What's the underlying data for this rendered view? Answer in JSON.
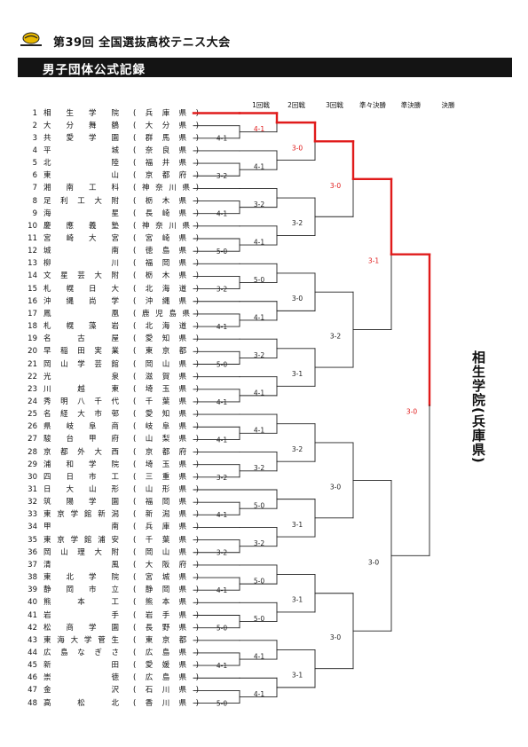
{
  "header": {
    "title": "第39回 全国選抜高校テニス大会",
    "section": "男子団体公式記録"
  },
  "brand": {
    "accent": "#e01b1b",
    "line": "#222222",
    "bar": "#141414"
  },
  "rounds": [
    "1回戦",
    "2回戦",
    "3回戦",
    "準々決勝",
    "準決勝",
    "決勝"
  ],
  "participants": [
    {
      "n": "1",
      "school": "相生学院",
      "pref": "(兵庫県)"
    },
    {
      "n": "2",
      "school": "大分舞鶴",
      "pref": "(大分県)"
    },
    {
      "n": "3",
      "school": "共愛学園",
      "pref": "(群馬県)"
    },
    {
      "n": "4",
      "school": "平城",
      "pref": "(奈良県)"
    },
    {
      "n": "5",
      "school": "北陸",
      "pref": "(福井県)"
    },
    {
      "n": "6",
      "school": "東山",
      "pref": "(京都府)"
    },
    {
      "n": "7",
      "school": "湘南工科",
      "pref": "(神奈川県)"
    },
    {
      "n": "8",
      "school": "足利工大附",
      "pref": "(栃木県)"
    },
    {
      "n": "9",
      "school": "海星",
      "pref": "(長崎県)"
    },
    {
      "n": "10",
      "school": "慶應義塾",
      "pref": "(神奈川県)"
    },
    {
      "n": "11",
      "school": "宮崎大宮",
      "pref": "(宮崎県)"
    },
    {
      "n": "12",
      "school": "城南",
      "pref": "(徳島県)"
    },
    {
      "n": "13",
      "school": "柳川",
      "pref": "(福岡県)"
    },
    {
      "n": "14",
      "school": "文星芸大附",
      "pref": "(栃木県)"
    },
    {
      "n": "15",
      "school": "札幌日大",
      "pref": "(北海道)"
    },
    {
      "n": "16",
      "school": "沖縄尚学",
      "pref": "(沖縄県)"
    },
    {
      "n": "17",
      "school": "鳳凰",
      "pref": "(鹿児島県)"
    },
    {
      "n": "18",
      "school": "札幌藻岩",
      "pref": "(北海道)"
    },
    {
      "n": "19",
      "school": "名古屋",
      "pref": "(愛知県)"
    },
    {
      "n": "20",
      "school": "早稲田実業",
      "pref": "(東京都)"
    },
    {
      "n": "21",
      "school": "岡山学芸館",
      "pref": "(岡山県)"
    },
    {
      "n": "22",
      "school": "光泉",
      "pref": "(滋賀県)"
    },
    {
      "n": "23",
      "school": "川越東",
      "pref": "(埼玉県)"
    },
    {
      "n": "24",
      "school": "秀明八千代",
      "pref": "(千葉県)"
    },
    {
      "n": "25",
      "school": "名経大市邨",
      "pref": "(愛知県)"
    },
    {
      "n": "26",
      "school": "県岐阜商",
      "pref": "(岐阜県)"
    },
    {
      "n": "27",
      "school": "駿台甲府",
      "pref": "(山梨県)"
    },
    {
      "n": "28",
      "school": "京都外大西",
      "pref": "(京都府)"
    },
    {
      "n": "29",
      "school": "浦和学院",
      "pref": "(埼玉県)"
    },
    {
      "n": "30",
      "school": "四日市工",
      "pref": "(三重県)"
    },
    {
      "n": "31",
      "school": "日大山形",
      "pref": "(山形県)"
    },
    {
      "n": "32",
      "school": "筑陽学園",
      "pref": "(福岡県)"
    },
    {
      "n": "33",
      "school": "東京学館新潟",
      "pref": "(新潟県)"
    },
    {
      "n": "34",
      "school": "甲南",
      "pref": "(兵庫県)"
    },
    {
      "n": "35",
      "school": "東京学館浦安",
      "pref": "(千葉県)"
    },
    {
      "n": "36",
      "school": "岡山理大附",
      "pref": "(岡山県)"
    },
    {
      "n": "37",
      "school": "清風",
      "pref": "(大阪府)"
    },
    {
      "n": "38",
      "school": "東北学院",
      "pref": "(宮城県)"
    },
    {
      "n": "39",
      "school": "静岡市立",
      "pref": "(静岡県)"
    },
    {
      "n": "40",
      "school": "熊本工",
      "pref": "(熊本県)"
    },
    {
      "n": "41",
      "school": "岩手",
      "pref": "(岩手県)"
    },
    {
      "n": "42",
      "school": "松商学園",
      "pref": "(長野県)"
    },
    {
      "n": "43",
      "school": "東海大学菅生",
      "pref": "(東京都)"
    },
    {
      "n": "44",
      "school": "広島なぎさ",
      "pref": "(広島県)"
    },
    {
      "n": "45",
      "school": "新田",
      "pref": "(愛媛県)"
    },
    {
      "n": "46",
      "school": "崇徳",
      "pref": "(広島県)"
    },
    {
      "n": "47",
      "school": "金沢",
      "pref": "(石川県)"
    },
    {
      "n": "48",
      "school": "高松北",
      "pref": "(香川県)"
    }
  ],
  "results": {
    "r1": [
      "4-1",
      "3-2",
      "4-1",
      "5-0",
      "3-2",
      "4-1",
      "5-0",
      "4-1",
      "4-1",
      "3-2",
      "4-1",
      "3-2",
      "4-1",
      "5-0",
      "4-1",
      "5-0"
    ],
    "r2": [
      "4-1",
      "4-1",
      "3-2",
      "4-1",
      "5-0",
      "4-1",
      "3-2",
      "4-1",
      "4-1",
      "3-2",
      "5-0",
      "3-2",
      "5-0",
      "5-0",
      "4-1",
      "4-1"
    ],
    "r3": [
      "3-0",
      "3-2",
      "3-0",
      "3-1",
      "3-2",
      "3-1",
      "3-1",
      "3-1"
    ],
    "qf": [
      "3-0",
      "3-2",
      "3-0",
      "3-0"
    ],
    "sf": [
      "3-1",
      "3-0"
    ],
    "final": [
      "3-0"
    ]
  },
  "champion": "相生学院(兵庫県)"
}
